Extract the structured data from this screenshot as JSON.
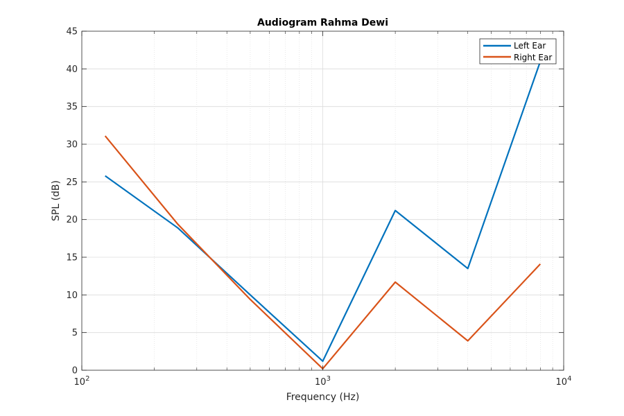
{
  "chart_data": {
    "type": "line",
    "title": "Audiogram Rahma Dewi",
    "xlabel": "Frequency (Hz)",
    "ylabel": "SPL (dB)",
    "xscale": "log",
    "xlim": [
      100,
      10000
    ],
    "ylim": [
      0,
      45
    ],
    "x_ticks": [
      {
        "value": 100,
        "base": "10",
        "exp": "2"
      },
      {
        "value": 1000,
        "base": "10",
        "exp": "3"
      },
      {
        "value": 10000,
        "base": "10",
        "exp": "4"
      }
    ],
    "y_ticks": [
      {
        "value": 0,
        "label": "0"
      },
      {
        "value": 5,
        "label": "5"
      },
      {
        "value": 10,
        "label": "10"
      },
      {
        "value": 15,
        "label": "15"
      },
      {
        "value": 20,
        "label": "20"
      },
      {
        "value": 25,
        "label": "25"
      },
      {
        "value": 30,
        "label": "30"
      },
      {
        "value": 35,
        "label": "35"
      },
      {
        "value": 40,
        "label": "40"
      },
      {
        "value": 45,
        "label": "45"
      }
    ],
    "grid": true,
    "minor_grid": true,
    "legend_position": "top-right",
    "x": [
      125,
      250,
      500,
      1000,
      2000,
      4000,
      8000
    ],
    "series": [
      {
        "name": "Left Ear",
        "color": "#0072BD",
        "values": [
          25.8,
          18.9,
          10.0,
          1.2,
          21.2,
          13.5,
          41.0
        ]
      },
      {
        "name": "Right Ear",
        "color": "#D95319",
        "values": [
          31.1,
          19.4,
          9.4,
          0.2,
          11.7,
          3.9,
          14.1
        ]
      }
    ]
  }
}
